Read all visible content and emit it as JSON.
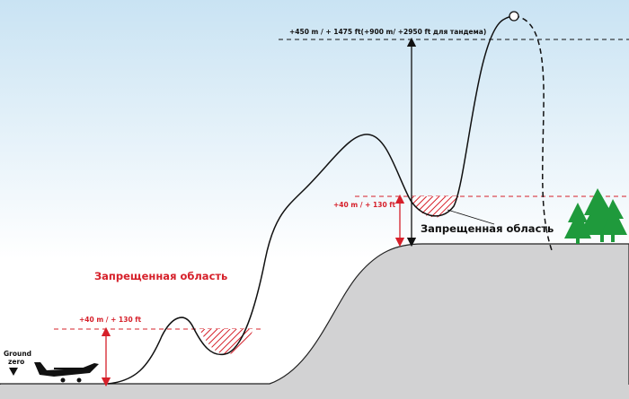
{
  "labels": {
    "max_altitude": "+450 m / + 1475 ft(+900 m/ +2950 ft для тандема)",
    "margin_upper": "+40 m / + 130 ft",
    "margin_lower": "+40 m / + 130 ft",
    "forbidden_lower": "Запрещенная область",
    "forbidden_upper": "Запрещенная область",
    "ground_zero": [
      "Ground",
      "zero"
    ]
  }
}
